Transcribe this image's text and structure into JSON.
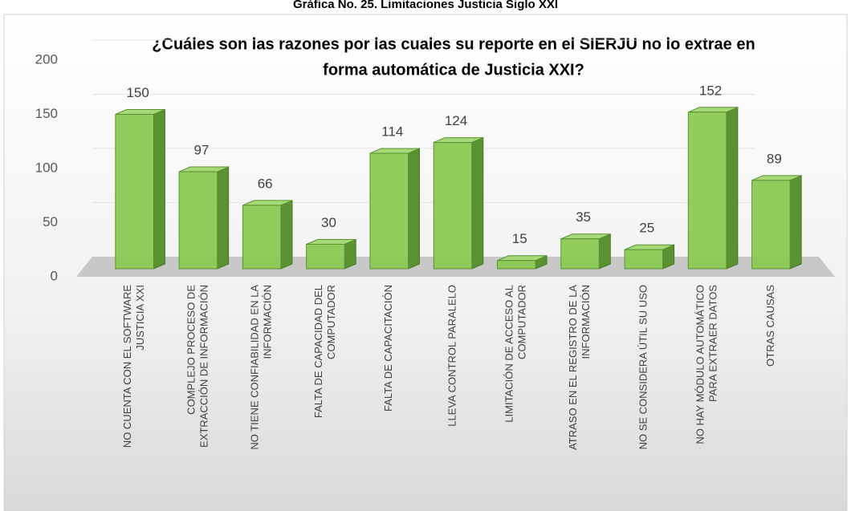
{
  "caption": "Gráfica No. 25. Limitaciones Justicia Siglo XXI",
  "chart_data": {
    "type": "bar",
    "title": [
      "¿Cuáles son las razones por las cuales su reporte en el SIERJU no lo extrae en",
      "forma automática de Justicia XXI?"
    ],
    "categories": [
      [
        "NO CUENTA CON EL SOFTWARE",
        "JUSTICIA XXI"
      ],
      [
        "COMPLEJO PROCESO DE",
        "EXTRACCIÓN DE INFORMACIÓN"
      ],
      [
        "NO TIENE CONFIABILIDAD EN LA",
        "INFORMACIÓN"
      ],
      [
        "FALTA DE CAPACIDAD DEL",
        "COMPUTADOR"
      ],
      [
        "FALTA DE CAPACITACIÓN"
      ],
      [
        "LLEVA CONTROL PARALELO"
      ],
      [
        "LIMITACIÓN DE ACCESO AL",
        "COMPUTADOR"
      ],
      [
        "ATRASO EN EL REGISTRO DE LA",
        "INFORMACIÓN"
      ],
      [
        "NO SE CONSIDERA ÚTIL SU USO"
      ],
      [
        "NO HAY MÓDULO AUTOMÁTICO",
        "PARA EXTRAER DATOS"
      ],
      [
        "OTRAS CAUSAS"
      ]
    ],
    "values": [
      150,
      97,
      66,
      30,
      114,
      124,
      15,
      35,
      25,
      152,
      89
    ],
    "color": "#8cc954",
    "ylim": [
      0,
      200
    ],
    "yticks": [
      0,
      50,
      100,
      150,
      200
    ],
    "grid": true
  }
}
